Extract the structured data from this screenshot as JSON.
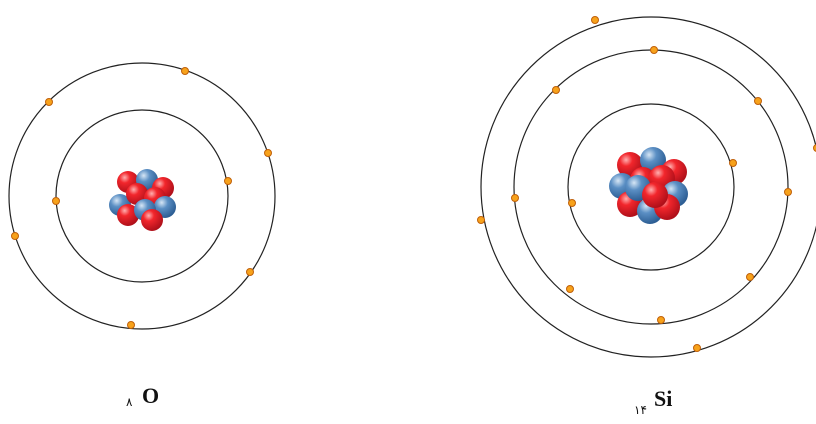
{
  "atoms": [
    {
      "number": "۸",
      "symbol": "O"
    },
    {
      "number": "۱۴",
      "symbol": "Si"
    }
  ]
}
